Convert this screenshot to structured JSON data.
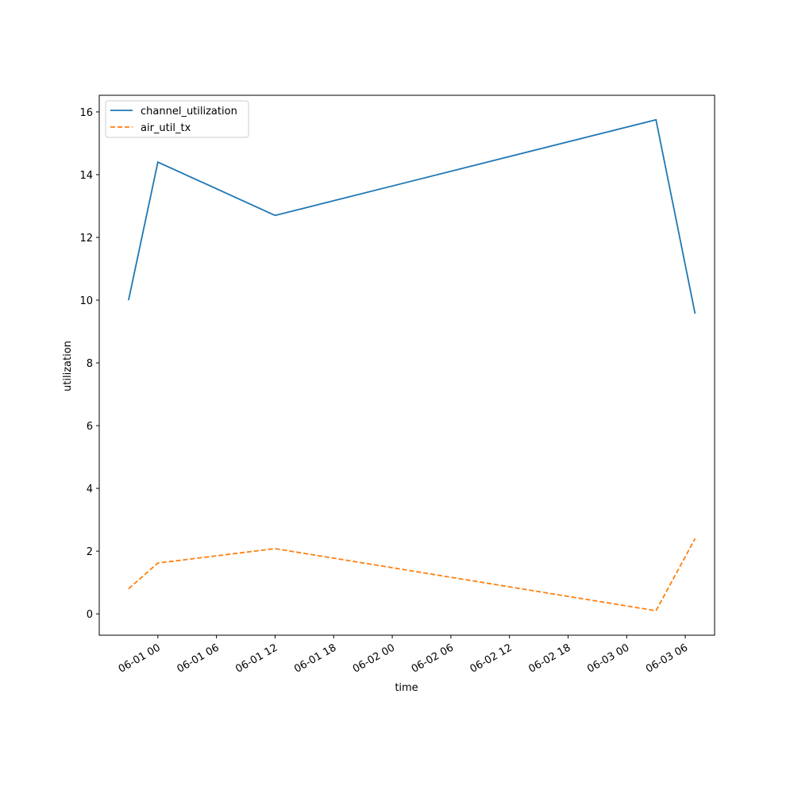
{
  "chart_data": {
    "type": "line",
    "xlabel": "time",
    "ylabel": "utilization",
    "x": [
      "05-31 21",
      "06-01 00",
      "06-01 12",
      "06-03 03",
      "06-03 07"
    ],
    "series": [
      {
        "name": "channel_utilization",
        "color": "#1f77b4",
        "dash": false,
        "values": [
          10.0,
          14.4,
          12.7,
          15.75,
          9.57
        ]
      },
      {
        "name": "air_util_tx",
        "color": "#ff7f0e",
        "dash": true,
        "values": [
          0.8,
          1.62,
          2.08,
          0.1,
          2.4
        ]
      }
    ],
    "xlim": [
      "05-31 18",
      "06-03 09"
    ],
    "xticks": [
      "06-01 00",
      "06-01 06",
      "06-01 12",
      "06-01 18",
      "06-02 00",
      "06-02 06",
      "06-02 12",
      "06-02 18",
      "06-03 00",
      "06-03 06"
    ],
    "ylim": [
      -0.68,
      16.53
    ],
    "yticks": [
      0,
      2,
      4,
      6,
      8,
      10,
      12,
      14,
      16
    ],
    "legend": "upper left"
  }
}
